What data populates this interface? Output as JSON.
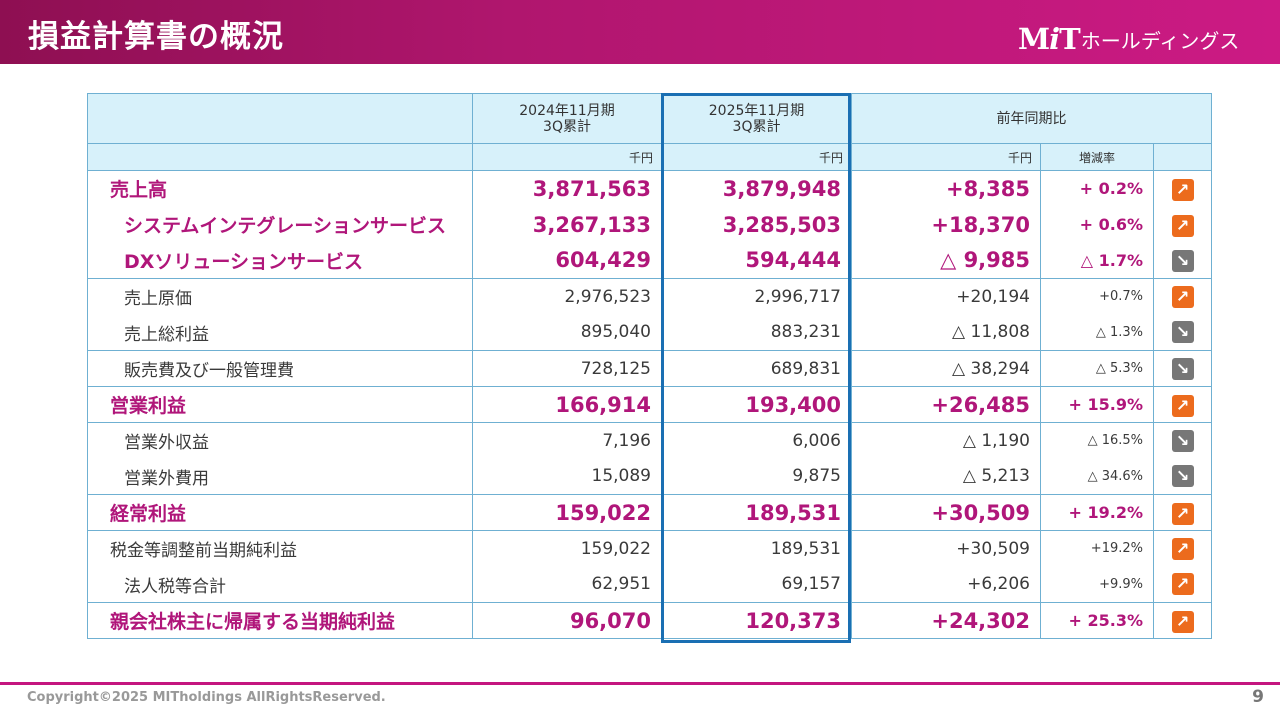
{
  "header": {
    "title": "損益計算書の概況",
    "logo_mit": "MiT",
    "logo_sub": "ホールディングス"
  },
  "table": {
    "col_prev_title": "2024年11月期\n3Q累計",
    "col_curr_title": "2025年11月期\n3Q累計",
    "col_compare_title": "前年同期比",
    "unit": "千円",
    "rate_title": "増減率",
    "rows": [
      {
        "label": "売上高",
        "prev": "3,871,563",
        "curr": "3,879,948",
        "diff": "+8,385",
        "rate": "+ 0.2%",
        "trend": "up"
      },
      {
        "label": "システムインテグレーションサービス",
        "prev": "3,267,133",
        "curr": "3,285,503",
        "diff": "+18,370",
        "rate": "+ 0.6%",
        "trend": "up"
      },
      {
        "label": "DXソリューションサービス",
        "prev": "604,429",
        "curr": "594,444",
        "diff": "△ 9,985",
        "rate": "△ 1.7%",
        "trend": "down"
      },
      {
        "label": "売上原価",
        "prev": "2,976,523",
        "curr": "2,996,717",
        "diff": "+20,194",
        "rate": "+0.7%",
        "trend": "up"
      },
      {
        "label": "売上総利益",
        "prev": "895,040",
        "curr": "883,231",
        "diff": "△ 11,808",
        "rate": "△ 1.3%",
        "trend": "down"
      },
      {
        "label": "販売費及び一般管理費",
        "prev": "728,125",
        "curr": "689,831",
        "diff": "△ 38,294",
        "rate": "△ 5.3%",
        "trend": "down"
      },
      {
        "label": "営業利益",
        "prev": "166,914",
        "curr": "193,400",
        "diff": "+26,485",
        "rate": "+ 15.9%",
        "trend": "up"
      },
      {
        "label": "営業外収益",
        "prev": "7,196",
        "curr": "6,006",
        "diff": "△ 1,190",
        "rate": "△ 16.5%",
        "trend": "down"
      },
      {
        "label": "営業外費用",
        "prev": "15,089",
        "curr": "9,875",
        "diff": "△ 5,213",
        "rate": "△ 34.6%",
        "trend": "down"
      },
      {
        "label": "経常利益",
        "prev": "159,022",
        "curr": "189,531",
        "diff": "+30,509",
        "rate": "+ 19.2%",
        "trend": "up"
      },
      {
        "label": "税金等調整前当期純利益",
        "prev": "159,022",
        "curr": "189,531",
        "diff": "+30,509",
        "rate": "+19.2%",
        "trend": "up"
      },
      {
        "label": "法人税等合計",
        "prev": "62,951",
        "curr": "69,157",
        "diff": "+6,206",
        "rate": "+9.9%",
        "trend": "up"
      },
      {
        "label": "親会社株主に帰属する当期純利益",
        "prev": "96,070",
        "curr": "120,373",
        "diff": "+24,302",
        "rate": "+ 25.3%",
        "trend": "up"
      }
    ]
  },
  "footer": {
    "copyright": "Copyright©2025 MITholdings AllRightsReserved.",
    "page": "9"
  },
  "colors": {
    "brand": "#b0167a",
    "header_bg": "#cc1a84",
    "highlight_frame": "#1a6fb3",
    "up_icon": "#ec6b1d",
    "down_icon": "#777777"
  }
}
